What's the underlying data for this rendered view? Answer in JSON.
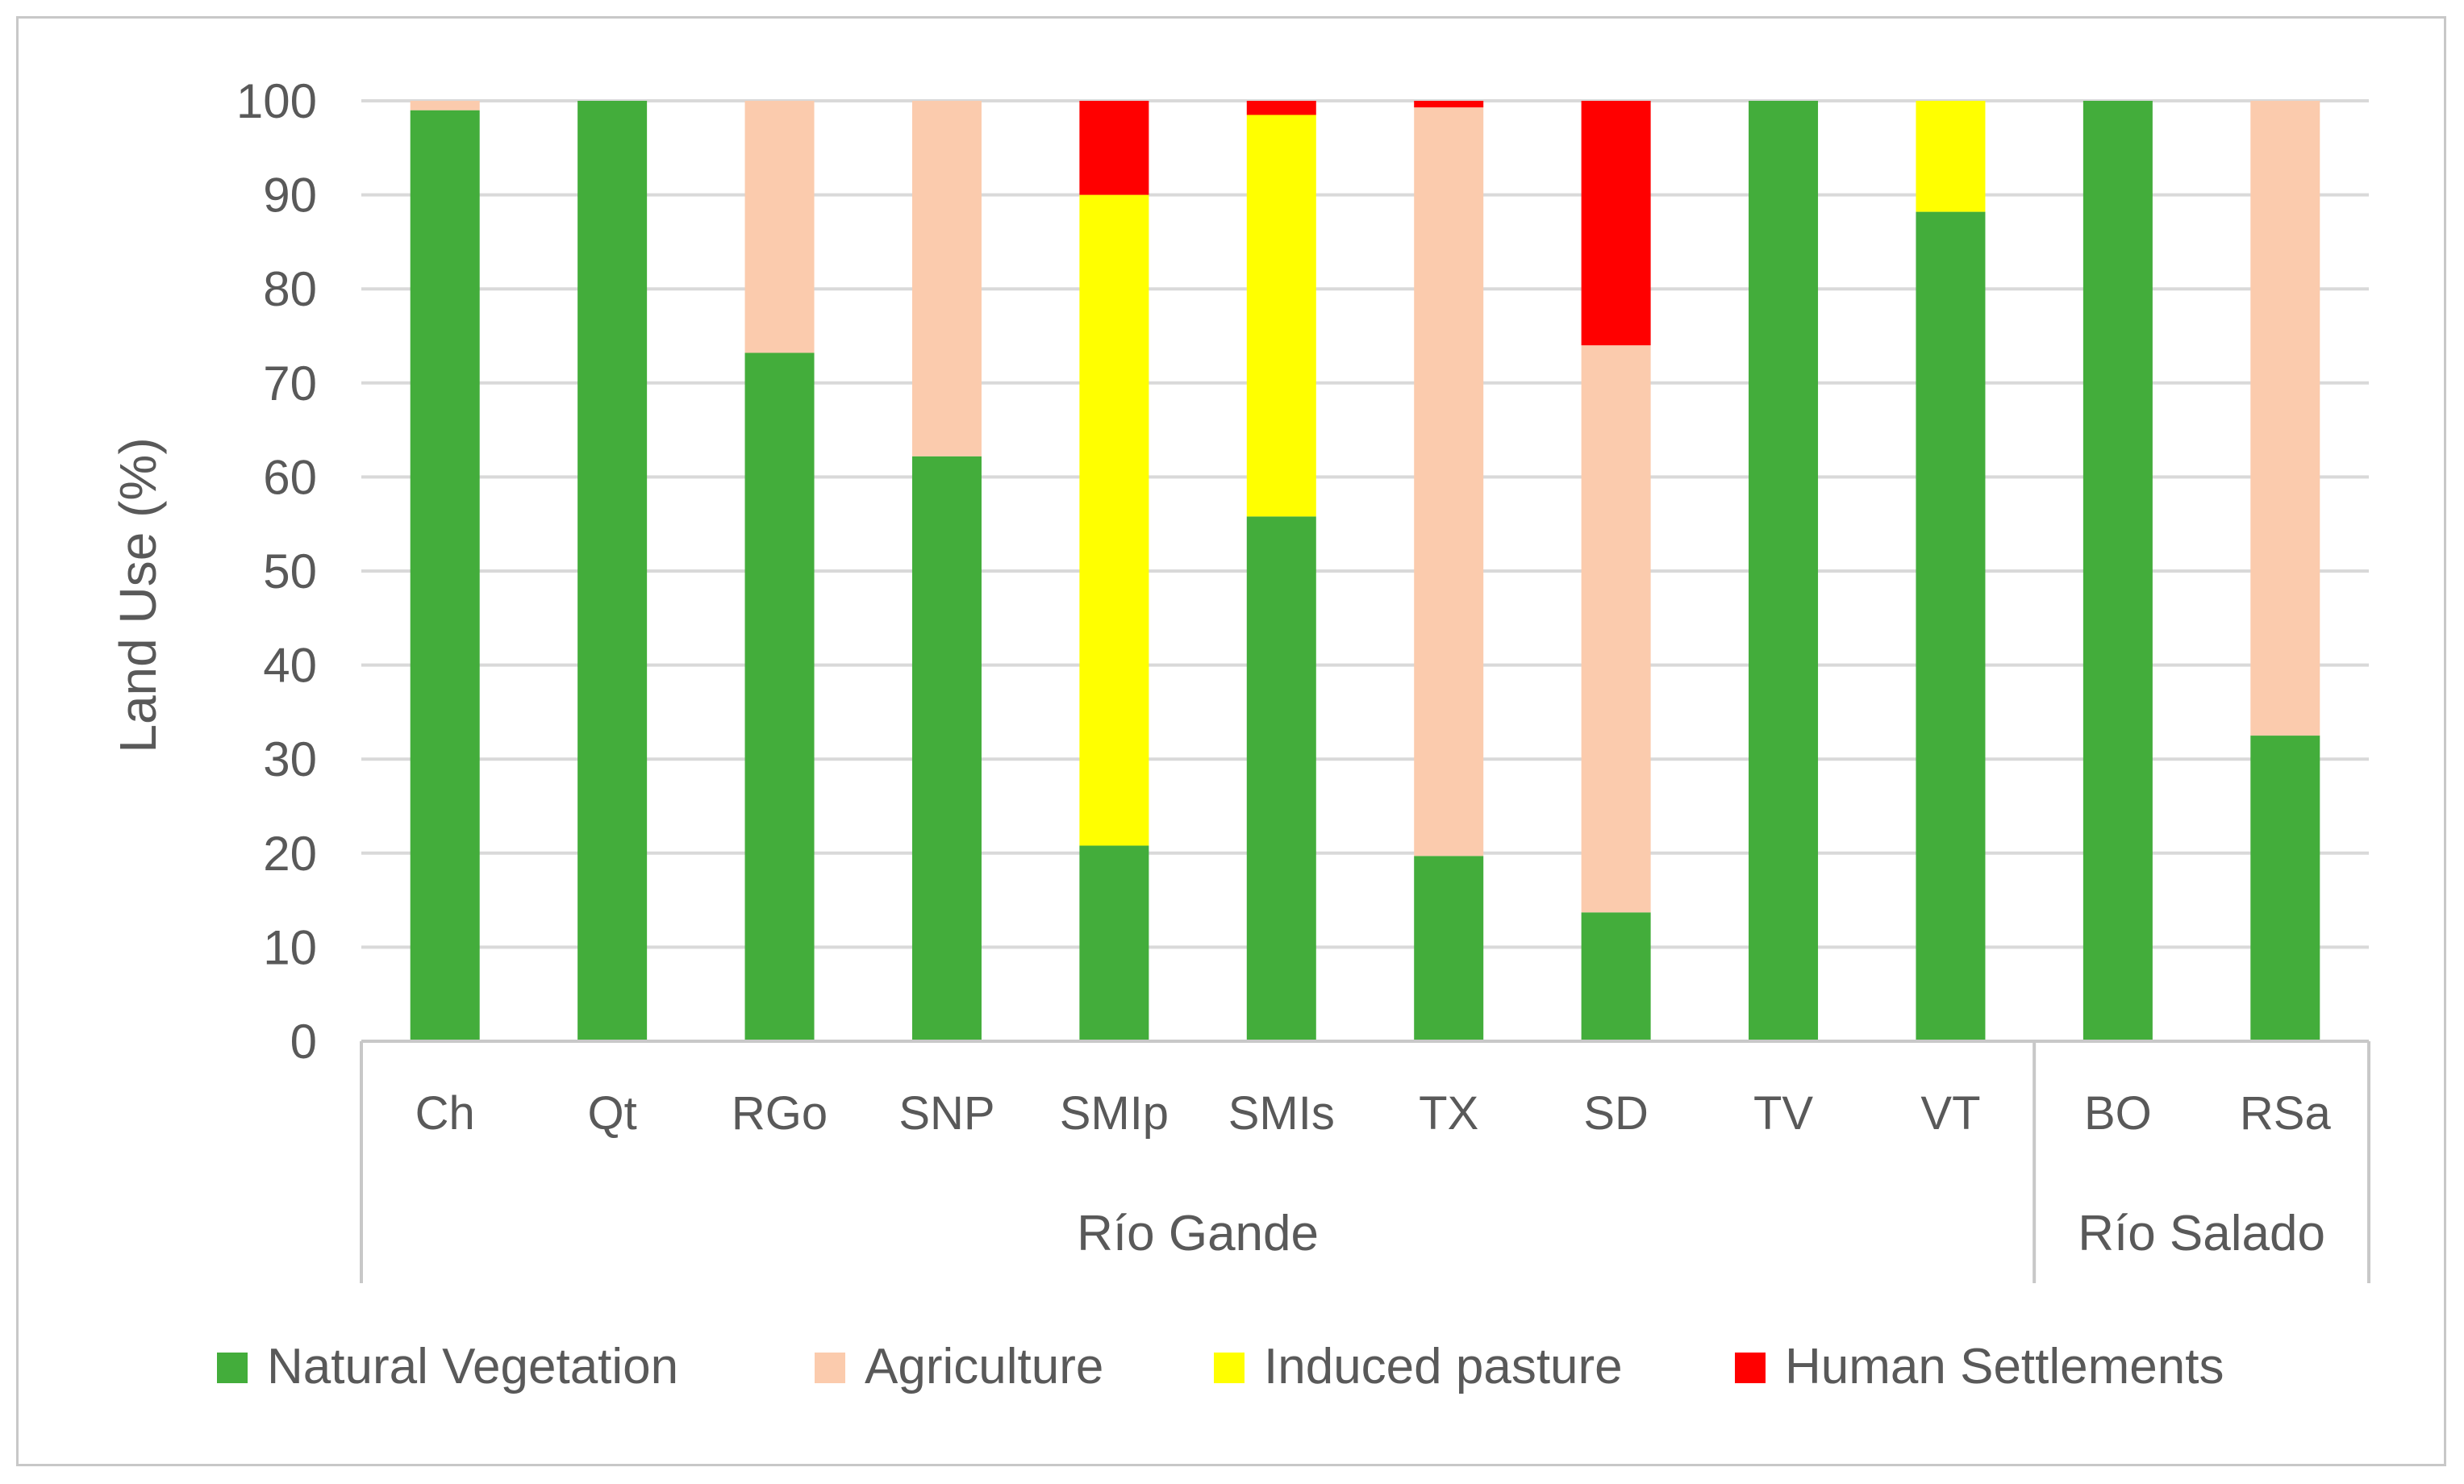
{
  "chart_data": {
    "type": "bar",
    "stacked": true,
    "title": "",
    "xlabel": "",
    "ylabel": "Land Use (%)",
    "ylim": [
      0,
      100
    ],
    "yticks": [
      0,
      10,
      20,
      30,
      40,
      50,
      60,
      70,
      80,
      90,
      100
    ],
    "grid": true,
    "legend_position": "bottom",
    "categories": [
      "Ch",
      "Qt",
      "RGo",
      "SNP",
      "SMIp",
      "SMIs",
      "TX",
      "SD",
      "TV",
      "VT",
      "BO",
      "RSa"
    ],
    "groups": [
      {
        "name": "Río Gande",
        "categories": [
          "Ch",
          "Qt",
          "RGo",
          "SNP",
          "SMIp",
          "SMIs",
          "TX",
          "SD",
          "TV",
          "VT"
        ]
      },
      {
        "name": "Río Salado",
        "categories": [
          "BO",
          "RSa"
        ]
      }
    ],
    "series": [
      {
        "name": "Natural Vegetation",
        "color": "#43ad3b",
        "values": [
          99,
          100,
          73.2,
          62.2,
          20.8,
          55.8,
          19.7,
          13.7,
          100,
          88.2,
          100,
          32.5
        ]
      },
      {
        "name": "Agriculture",
        "color": "#fbcbad",
        "values": [
          1,
          0,
          26.8,
          37.8,
          0,
          0,
          79.6,
          60.3,
          0,
          0,
          0,
          67.5
        ]
      },
      {
        "name": "Induced pasture",
        "color": "#ffff00",
        "values": [
          0,
          0,
          0,
          0,
          69.2,
          42.7,
          0,
          0,
          0,
          11.8,
          0,
          0
        ]
      },
      {
        "name": "Human Settlements",
        "color": "#ff0000",
        "values": [
          0,
          0,
          0,
          0,
          10,
          1.5,
          0.7,
          26,
          0,
          0,
          0,
          0
        ]
      }
    ]
  },
  "colors": {
    "grid": "#d9d9d9",
    "axis": "#c8c8c8",
    "text": "#595959"
  }
}
